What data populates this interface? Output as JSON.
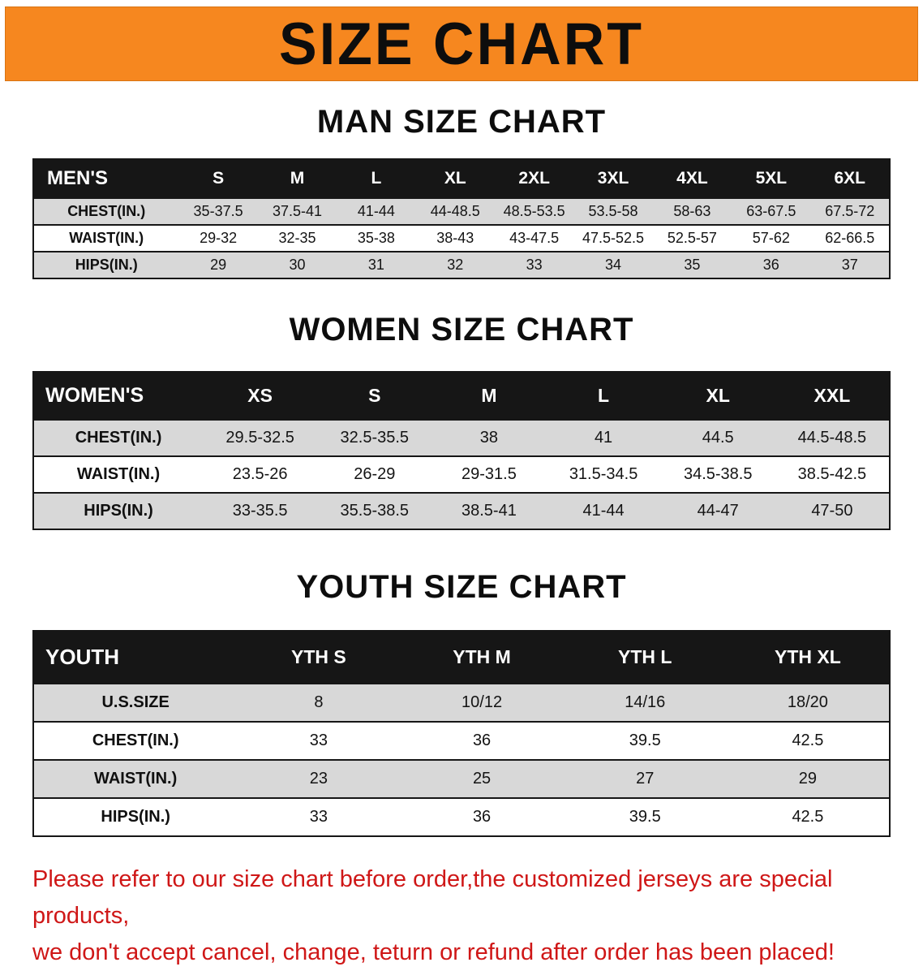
{
  "banner": {
    "title": "SIZE CHART"
  },
  "colors": {
    "banner_bg": "#f6871f",
    "band_bg": "#161616",
    "stripe_bg": "#d8d8d8",
    "disclaimer_color": "#cf1717"
  },
  "sections": [
    {
      "heading": "MAN SIZE CHART",
      "table": {
        "header": [
          "MEN'S",
          "S",
          "M",
          "L",
          "XL",
          "2XL",
          "3XL",
          "4XL",
          "5XL",
          "6XL"
        ],
        "rows": [
          [
            "CHEST(IN.)",
            "35-37.5",
            "37.5-41",
            "41-44",
            "44-48.5",
            "48.5-53.5",
            "53.5-58",
            "58-63",
            "63-67.5",
            "67.5-72"
          ],
          [
            "WAIST(IN.)",
            "29-32",
            "32-35",
            "35-38",
            "38-43",
            "43-47.5",
            "47.5-52.5",
            "52.5-57",
            "57-62",
            "62-66.5"
          ],
          [
            "HIPS(IN.)",
            "29",
            "30",
            "31",
            "32",
            "33",
            "34",
            "35",
            "36",
            "37"
          ]
        ]
      }
    },
    {
      "heading": "WOMEN SIZE CHART",
      "table": {
        "header": [
          "WOMEN'S",
          "XS",
          "S",
          "M",
          "L",
          "XL",
          "XXL"
        ],
        "rows": [
          [
            "CHEST(IN.)",
            "29.5-32.5",
            "32.5-35.5",
            "38",
            "41",
            "44.5",
            "44.5-48.5"
          ],
          [
            "WAIST(IN.)",
            "23.5-26",
            "26-29",
            "29-31.5",
            "31.5-34.5",
            "34.5-38.5",
            "38.5-42.5"
          ],
          [
            "HIPS(IN.)",
            "33-35.5",
            "35.5-38.5",
            "38.5-41",
            "41-44",
            "44-47",
            "47-50"
          ]
        ]
      }
    },
    {
      "heading": "YOUTH SIZE CHART",
      "table": {
        "header": [
          "YOUTH",
          "YTH S",
          "YTH M",
          "YTH L",
          "YTH XL"
        ],
        "rows": [
          [
            "U.S.SIZE",
            "8",
            "10/12",
            "14/16",
            "18/20"
          ],
          [
            "CHEST(IN.)",
            "33",
            "36",
            "39.5",
            "42.5"
          ],
          [
            "WAIST(IN.)",
            "23",
            "25",
            "27",
            "29"
          ],
          [
            "HIPS(IN.)",
            "33",
            "36",
            "39.5",
            "42.5"
          ]
        ]
      }
    }
  ],
  "disclaimer": {
    "line1": "Please refer to our size chart before order,the customized jerseys are special products,",
    "line2": "we don't accept cancel, change, teturn or refund after order has been placed!"
  }
}
